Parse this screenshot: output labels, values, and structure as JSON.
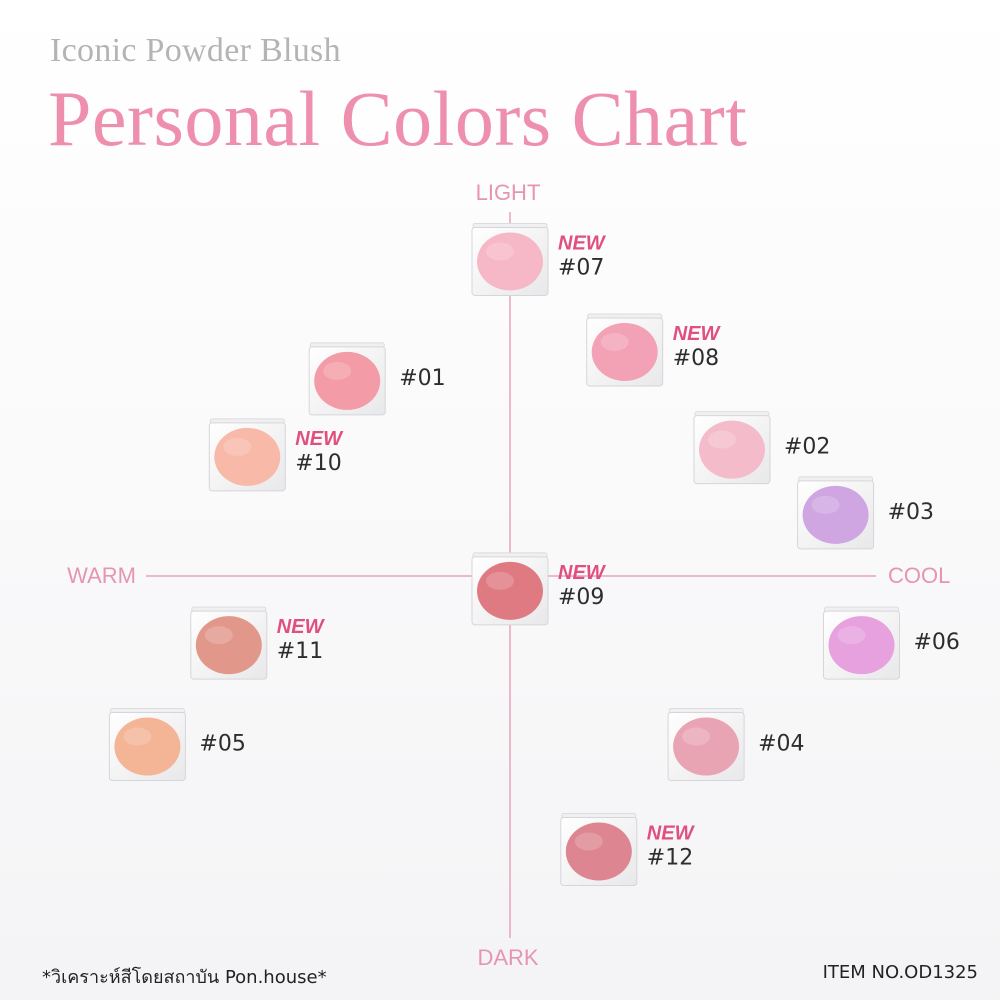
{
  "header": {
    "subtitle": "Iconic Powder Blush",
    "title": "Personal Colors Chart"
  },
  "chart_data": {
    "type": "scatter",
    "axes": {
      "top": "LIGHT",
      "bottom": "DARK",
      "left": "WARM",
      "right": "COOL"
    },
    "new_label": "NEW",
    "points": [
      {
        "label": "#07",
        "x": 0.0,
        "y": 0.88,
        "new": true,
        "color": "#f6b8c6"
      },
      {
        "label": "#01",
        "x": -0.44,
        "y": 0.55,
        "new": false,
        "color": "#f39ba6"
      },
      {
        "label": "#08",
        "x": 0.31,
        "y": 0.63,
        "new": true,
        "color": "#f3a2b5"
      },
      {
        "label": "#10",
        "x": -0.71,
        "y": 0.34,
        "new": true,
        "color": "#f8b9a9"
      },
      {
        "label": "#02",
        "x": 0.6,
        "y": 0.36,
        "new": false,
        "color": "#f4bccb"
      },
      {
        "label": "#03",
        "x": 0.88,
        "y": 0.18,
        "new": false,
        "color": "#cfa6e2"
      },
      {
        "label": "#09",
        "x": 0.0,
        "y": -0.03,
        "new": true,
        "color": "#df7a82"
      },
      {
        "label": "#11",
        "x": -0.76,
        "y": -0.18,
        "new": true,
        "color": "#e1988b"
      },
      {
        "label": "#06",
        "x": 0.95,
        "y": -0.18,
        "new": false,
        "color": "#e6a1de"
      },
      {
        "label": "#05",
        "x": -0.98,
        "y": -0.46,
        "new": false,
        "color": "#f4b496"
      },
      {
        "label": "#04",
        "x": 0.53,
        "y": -0.46,
        "new": false,
        "color": "#e9a4b4"
      },
      {
        "label": "#12",
        "x": 0.24,
        "y": -0.75,
        "new": true,
        "color": "#dd8590"
      }
    ]
  },
  "footer": {
    "note": "*วิเคราะห์สีโดยสถาบัน Pon.house*",
    "item_no": "ITEM NO.OD1325"
  }
}
